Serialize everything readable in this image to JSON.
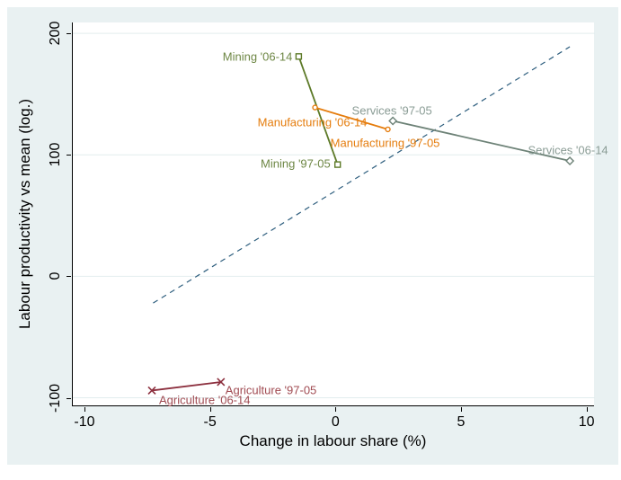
{
  "figure": {
    "panel_color": "#e9f1f2",
    "plot_bg_color": "#ffffff",
    "grid_color": "#e2edee",
    "axis_color": "#000000"
  },
  "chart_data": {
    "type": "scatter",
    "title": "",
    "xlabel": "Change in labour share (%)",
    "ylabel": "Labour productivity vs mean (log.)",
    "xlim": [
      -10.5,
      10.3
    ],
    "ylim": [
      -107,
      209
    ],
    "x_ticks": [
      -10,
      -5,
      0,
      5,
      10
    ],
    "y_ticks": [
      -100,
      0,
      100,
      200
    ],
    "grid": "horizontal-only",
    "legend": "none",
    "reference_line": {
      "style": "dashed",
      "color": "#2e5e7e",
      "from": {
        "x": -7.3,
        "y": -22
      },
      "to": {
        "x": 9.3,
        "y": 189
      }
    },
    "series": [
      {
        "name": "Mining",
        "marker": "square",
        "marker_size": 6,
        "line_color": "#5d7a28",
        "label_color": "#6e8745",
        "points": [
          {
            "x": -1.5,
            "y": 181,
            "label": "Mining '06-14",
            "label_anchor": "end",
            "label_dx": -7,
            "label_dy": 0
          },
          {
            "x": 0.05,
            "y": 92,
            "label": "Mining '97-05",
            "label_anchor": "end",
            "label_dx": -8,
            "label_dy": -1
          }
        ]
      },
      {
        "name": "Manufacturing",
        "marker": "circle",
        "marker_size": 5,
        "line_color": "#e57d0e",
        "label_color": "#e57d0e",
        "points": [
          {
            "x": -0.85,
            "y": 139,
            "label": "Manufacturing '06-14",
            "label_anchor": "middle",
            "label_dx": -3,
            "label_dy": 16
          },
          {
            "x": 2.05,
            "y": 121,
            "label": "Manufacturing '97-05",
            "label_anchor": "middle",
            "label_dx": -3,
            "label_dy": 15
          }
        ]
      },
      {
        "name": "Services",
        "marker": "diamond",
        "marker_size": 8,
        "line_color": "#6d8277",
        "label_color": "#8a9c95",
        "points": [
          {
            "x": 2.25,
            "y": 128,
            "label": "Services '97-05",
            "label_anchor": "middle",
            "label_dx": -1,
            "label_dy": -11
          },
          {
            "x": 9.3,
            "y": 95,
            "label": "Services '06-14",
            "label_anchor": "middle",
            "label_dx": -2,
            "label_dy": -12
          }
        ]
      },
      {
        "name": "Agriculture",
        "marker": "x",
        "marker_size": 8,
        "line_color": "#8c2f3e",
        "label_color": "#a04b52",
        "points": [
          {
            "x": -7.35,
            "y": -94,
            "label": "Agriculture '06-14",
            "label_anchor": "start",
            "label_dx": 8,
            "label_dy": 11
          },
          {
            "x": -4.6,
            "y": -87,
            "label": "Agriculture '97-05",
            "label_anchor": "start",
            "label_dx": 5,
            "label_dy": 9
          }
        ]
      }
    ]
  }
}
